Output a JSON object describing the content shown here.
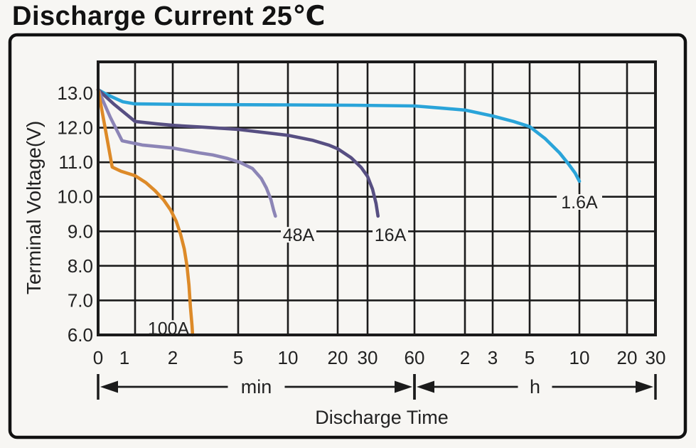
{
  "title": "Discharge Current 25℃",
  "chart_data": {
    "type": "line",
    "title": "Discharge Current 25℃",
    "xlabel": "Discharge Time",
    "ylabel": "Terminal Voltage(V)",
    "grid": true,
    "ylim": [
      6.0,
      13.9
    ],
    "y_ticks": [
      "13.0",
      "12.0",
      "11.0",
      "10.0",
      "9.0",
      "8.0",
      "7.0",
      "6.0"
    ],
    "x_ticks": [
      {
        "label": "0",
        "minutes": 0
      },
      {
        "label": "1",
        "minutes": 1
      },
      {
        "label": "2",
        "minutes": 2
      },
      {
        "label": "5",
        "minutes": 5
      },
      {
        "label": "10",
        "minutes": 10
      },
      {
        "label": "20",
        "minutes": 20
      },
      {
        "label": "30",
        "minutes": 30
      },
      {
        "label": "60",
        "minutes": 60
      },
      {
        "label": "2",
        "minutes": 120
      },
      {
        "label": "3",
        "minutes": 180
      },
      {
        "label": "5",
        "minutes": 300
      },
      {
        "label": "10",
        "minutes": 600
      },
      {
        "label": "20",
        "minutes": 1200
      },
      {
        "label": "30",
        "minutes": 1800
      }
    ],
    "x_unit_segments": [
      {
        "label": "min",
        "from_minutes": 0,
        "to_minutes": 60
      },
      {
        "label": "h",
        "from_minutes": 60,
        "to_minutes": 1800
      }
    ],
    "series": [
      {
        "name": "1.6A",
        "color": "#2aa4d9",
        "label": {
          "text": "1.6A",
          "minutes": 600,
          "volts": 9.85
        },
        "points": [
          [
            0,
            13.1
          ],
          [
            0.23,
            12.96
          ],
          [
            0.67,
            12.75
          ],
          [
            1,
            12.69
          ],
          [
            2.9,
            12.67
          ],
          [
            10,
            12.66
          ],
          [
            25,
            12.65
          ],
          [
            60,
            12.63
          ],
          [
            86,
            12.57
          ],
          [
            120,
            12.51
          ],
          [
            180,
            12.34
          ],
          [
            240,
            12.18
          ],
          [
            300,
            12.03
          ],
          [
            373,
            11.68
          ],
          [
            455,
            11.27
          ],
          [
            517,
            10.94
          ],
          [
            565,
            10.69
          ],
          [
            600,
            10.45
          ]
        ]
      },
      {
        "name": "16A",
        "color": "#574f82",
        "label": {
          "text": "16A",
          "minutes": 42,
          "volts": 8.9
        },
        "points": [
          [
            0,
            13.1
          ],
          [
            0.42,
            12.69
          ],
          [
            1,
            12.18
          ],
          [
            1.5,
            12.11
          ],
          [
            2,
            12.07
          ],
          [
            3.2,
            12.01
          ],
          [
            5,
            11.95
          ],
          [
            10,
            11.78
          ],
          [
            14,
            11.64
          ],
          [
            17.6,
            11.5
          ],
          [
            20,
            11.39
          ],
          [
            24,
            11.13
          ],
          [
            27.6,
            10.84
          ],
          [
            30,
            10.59
          ],
          [
            32.3,
            10.22
          ],
          [
            34,
            9.81
          ],
          [
            35,
            9.44
          ]
        ]
      },
      {
        "name": "48A",
        "color": "#8c85b6",
        "label": {
          "text": "48A",
          "minutes": 11.6,
          "volts": 8.9
        },
        "points": [
          [
            0,
            13.1
          ],
          [
            0.33,
            12.3
          ],
          [
            0.65,
            11.62
          ],
          [
            1.14,
            11.5
          ],
          [
            2,
            11.41
          ],
          [
            2.9,
            11.27
          ],
          [
            3.5,
            11.21
          ],
          [
            4.3,
            11.11
          ],
          [
            5.1,
            11.0
          ],
          [
            6.1,
            10.82
          ],
          [
            6.9,
            10.53
          ],
          [
            7.4,
            10.26
          ],
          [
            7.9,
            9.91
          ],
          [
            8.2,
            9.6
          ],
          [
            8.4,
            9.44
          ]
        ]
      },
      {
        "name": "100A",
        "color": "#dd8a28",
        "label": {
          "text": "100A",
          "minutes": 1.85,
          "volts": 6.2
        },
        "points": [
          [
            0,
            13.1
          ],
          [
            0.19,
            11.99
          ],
          [
            0.38,
            10.86
          ],
          [
            0.62,
            10.74
          ],
          [
            1,
            10.61
          ],
          [
            1.22,
            10.41
          ],
          [
            1.44,
            10.18
          ],
          [
            1.69,
            9.91
          ],
          [
            1.92,
            9.62
          ],
          [
            2.1,
            9.29
          ],
          [
            2.23,
            8.92
          ],
          [
            2.35,
            8.49
          ],
          [
            2.44,
            8.0
          ],
          [
            2.51,
            7.44
          ],
          [
            2.56,
            6.82
          ],
          [
            2.62,
            6.27
          ],
          [
            2.64,
            6.0
          ]
        ]
      }
    ]
  }
}
